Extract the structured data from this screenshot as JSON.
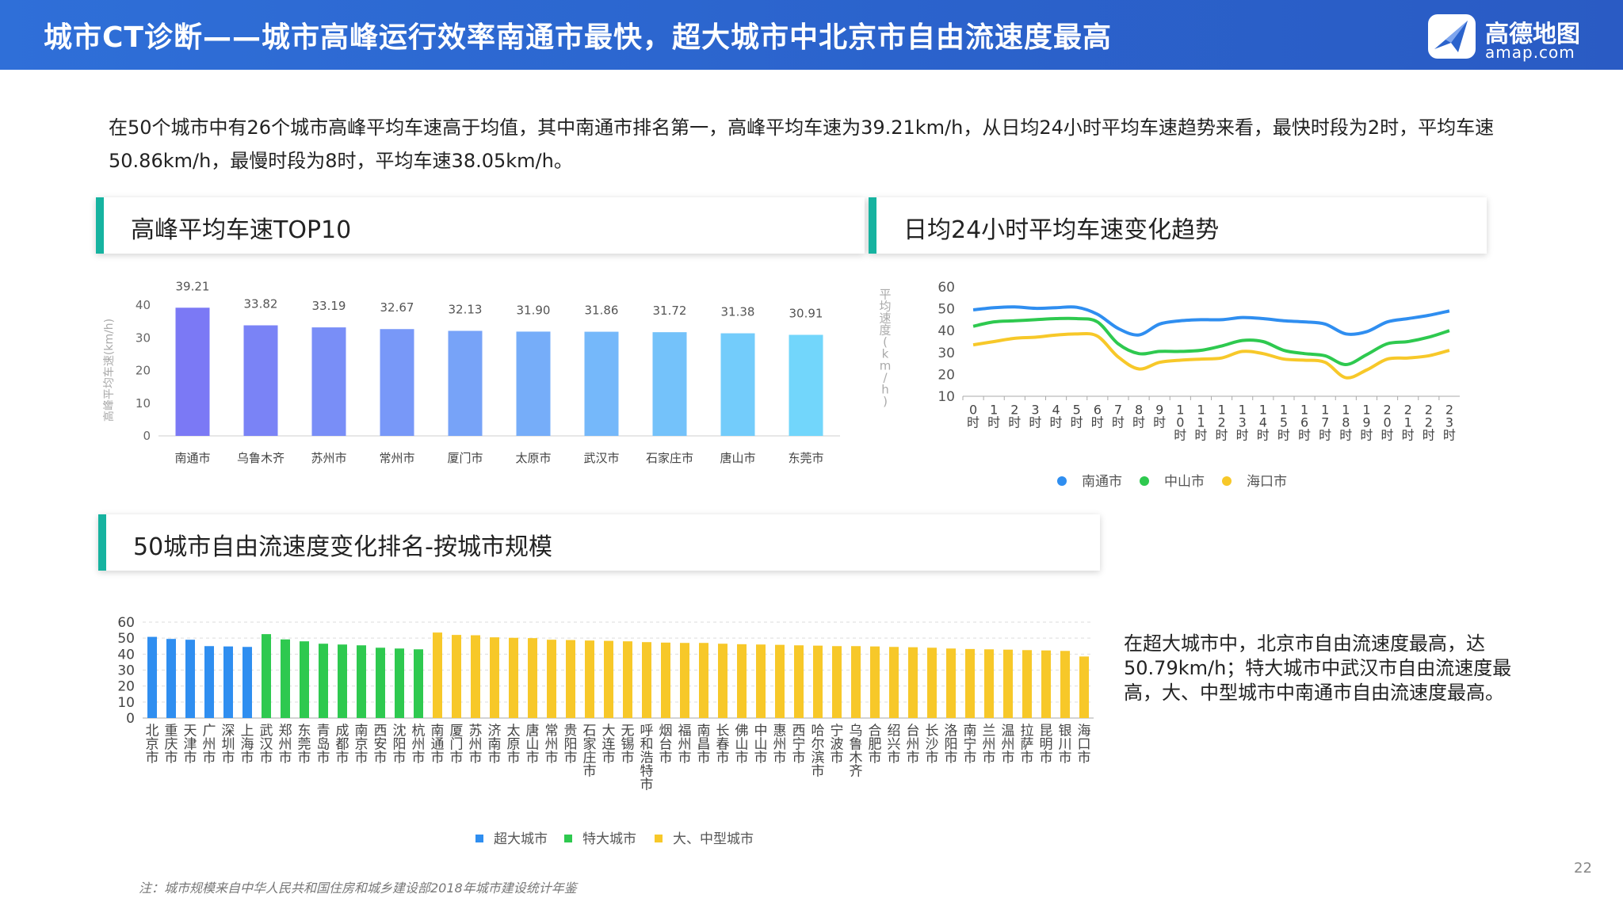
{
  "header": {
    "title": "城市CT诊断——城市高峰运行效率南通市最快，超大城市中北京市自由流速度最高",
    "logo_cn": "高德地图",
    "logo_en": "amap.com"
  },
  "intro": "在50个城市中有26个城市高峰平均车速高于均值，其中南通市排名第一，高峰平均车速为39.21km/h，从日均24小时平均车速趋势来看，最快时段为2时，平均车速50.86km/h，最慢时段为8时，平均车速38.05km/h。",
  "panels": {
    "top10_title": "高峰平均车速TOP10",
    "trend_title": "日均24小时平均车速变化趋势",
    "ranking_title": "50城市自由流速度变化排名-按城市规模"
  },
  "side_note": "在超大城市中，北京市自由流速度最高，达50.79km/h；特大城市中武汉市自由流速度最高，大、中型城市中南通市自由流速度最高。",
  "footnote": "注：城市规模来自中华人民共和国住房和城乡建设部2018年城市建设统计年鉴",
  "page_number": "22",
  "chart_data": [
    {
      "type": "bar",
      "ylabel": "高峰平均车速(km/h)",
      "ylim": [
        0,
        40
      ],
      "yticks": [
        "0",
        "10",
        "20",
        "30",
        "40"
      ],
      "categories": [
        "南通市",
        "乌鲁木齐",
        "苏州市",
        "常州市",
        "厦门市",
        "太原市",
        "武汉市",
        "石家庄市",
        "唐山市",
        "东莞市"
      ],
      "values": [
        39.21,
        33.82,
        33.19,
        32.67,
        32.13,
        31.9,
        31.86,
        31.72,
        31.38,
        30.91
      ],
      "value_labels": [
        "39.21",
        "33.82",
        "33.19",
        "32.67",
        "32.13",
        "31.90",
        "31.86",
        "31.72",
        "31.38",
        "30.91"
      ],
      "colors": [
        "#7b79f5",
        "#7a83f6",
        "#798ef7",
        "#7898f8",
        "#77a3f8",
        "#76adf9",
        "#75b8fa",
        "#74c2fa",
        "#73ccfb",
        "#72d6fb"
      ]
    },
    {
      "type": "line",
      "ylabel": "平均速度(km/h)",
      "ylim": [
        10,
        60
      ],
      "yticks": [
        "10",
        "20",
        "30",
        "40",
        "50",
        "60"
      ],
      "x": [
        "0时",
        "1时",
        "2时",
        "3时",
        "4时",
        "5时",
        "6时",
        "7时",
        "8时",
        "9时",
        "10时",
        "11时",
        "12时",
        "13时",
        "14时",
        "15时",
        "16时",
        "17时",
        "18时",
        "19时",
        "20时",
        "21时",
        "22时",
        "23时"
      ],
      "series": [
        {
          "name": "南通市",
          "color": "#2f8ef0",
          "values": [
            49.5,
            50.5,
            50.86,
            50.2,
            50.5,
            50.7,
            47.5,
            41,
            38.05,
            43,
            44.5,
            45,
            45,
            46,
            45.5,
            44.5,
            44,
            43,
            38.5,
            39.5,
            44,
            45.5,
            47,
            49
          ]
        },
        {
          "name": "中山市",
          "color": "#2ec94f",
          "values": [
            42,
            44,
            44.5,
            45,
            45.5,
            45.5,
            44,
            34,
            29.5,
            30.5,
            30.5,
            31,
            33,
            35.5,
            35,
            31,
            29.5,
            28.5,
            24.5,
            29,
            34,
            35,
            37,
            40
          ]
        },
        {
          "name": "海口市",
          "color": "#f7c829",
          "values": [
            33.5,
            35,
            36.5,
            37,
            38,
            38.5,
            37.5,
            28,
            22.5,
            25.5,
            26.5,
            27,
            27.5,
            30.5,
            29.5,
            27,
            26.5,
            25.5,
            18.5,
            22,
            27,
            27.5,
            28.5,
            31
          ]
        }
      ]
    },
    {
      "type": "bar",
      "ylim": [
        0,
        60
      ],
      "yticks": [
        "0",
        "10",
        "20",
        "30",
        "40",
        "50",
        "60"
      ],
      "categories": [
        "北京市",
        "重庆市",
        "天津市",
        "广州市",
        "深圳市",
        "上海市",
        "武汉市",
        "郑州市",
        "东莞市",
        "青岛市",
        "成都市",
        "南京市",
        "西安市",
        "沈阳市",
        "杭州市",
        "南通市",
        "厦门市",
        "苏州市",
        "济南市",
        "太原市",
        "唐山市",
        "常州市",
        "贵阳市",
        "石家庄市",
        "大连市",
        "无锡市",
        "呼和浩特市",
        "烟台市",
        "福州市",
        "南昌市",
        "长春市",
        "佛山市",
        "中山市",
        "惠州市",
        "西宁市",
        "哈尔滨市",
        "宁波市",
        "乌鲁木齐",
        "合肥市",
        "绍兴市",
        "台州市",
        "长沙市",
        "洛阳市",
        "南宁市",
        "兰州市",
        "温州市",
        "拉萨市",
        "昆明市",
        "银川市",
        "海口市"
      ],
      "values": [
        50.79,
        49.5,
        49,
        45,
        44.8,
        44.5,
        52.5,
        49.2,
        48,
        46.5,
        46,
        45.5,
        44,
        43.5,
        43,
        53.5,
        52,
        51.8,
        50.5,
        50.2,
        50,
        49,
        48.8,
        48.5,
        48.3,
        48,
        47.5,
        47.2,
        47,
        47,
        46.5,
        46.2,
        46,
        45.8,
        45.5,
        45.3,
        45,
        45,
        44.8,
        44.5,
        44.3,
        44,
        43.5,
        43.2,
        43,
        42.8,
        42.5,
        42.3,
        42,
        38.5
      ],
      "groups": [
        6,
        9,
        35
      ],
      "group_colors": [
        "#2f8ef0",
        "#2ec94f",
        "#f7c829"
      ],
      "legend": [
        "超大城市",
        "特大城市",
        "大、中型城市"
      ]
    }
  ]
}
